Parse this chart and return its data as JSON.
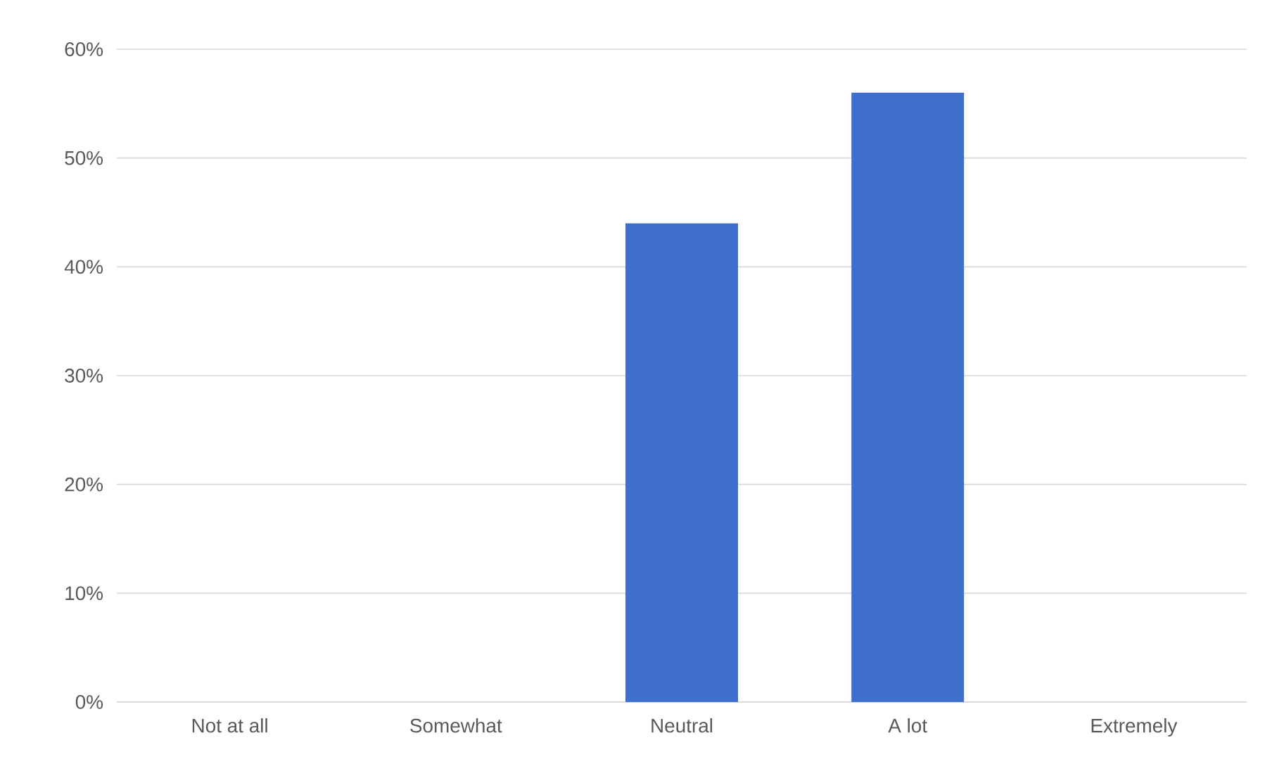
{
  "chart_data": {
    "type": "bar",
    "categories": [
      "Not at all",
      "Somewhat",
      "Neutral",
      "A lot",
      "Extremely"
    ],
    "values": [
      0,
      0,
      44,
      56,
      0
    ],
    "color": "#3f6fcc",
    "ylim": [
      0,
      60
    ],
    "yticks": [
      {
        "value": 0,
        "label": "0%"
      },
      {
        "value": 10,
        "label": "10%"
      },
      {
        "value": 20,
        "label": "20%"
      },
      {
        "value": 30,
        "label": "30%"
      },
      {
        "value": 40,
        "label": "40%"
      },
      {
        "value": 50,
        "label": "50%"
      },
      {
        "value": 60,
        "label": "60%"
      }
    ],
    "grid": "y"
  }
}
